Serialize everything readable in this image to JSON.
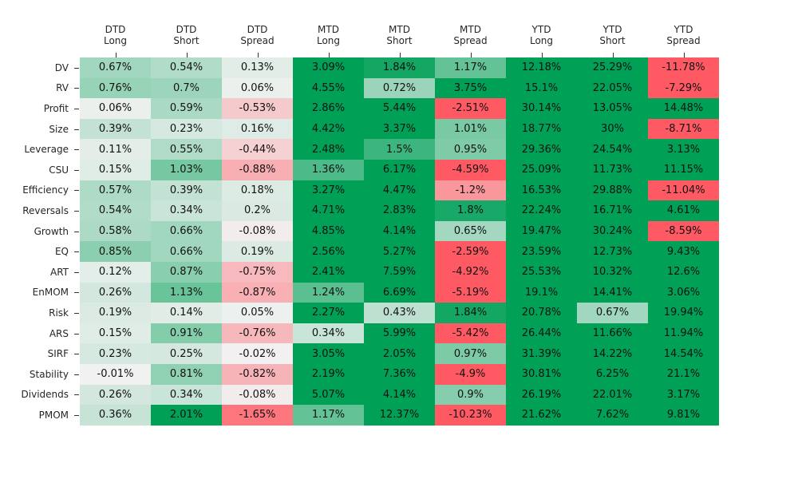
{
  "chart_data": {
    "type": "heatmap",
    "columns": [
      {
        "top": "DTD",
        "bottom": "Long"
      },
      {
        "top": "DTD",
        "bottom": "Short"
      },
      {
        "top": "DTD",
        "bottom": "Spread"
      },
      {
        "top": "MTD",
        "bottom": "Long"
      },
      {
        "top": "MTD",
        "bottom": "Short"
      },
      {
        "top": "MTD",
        "bottom": "Spread"
      },
      {
        "top": "YTD",
        "bottom": "Long"
      },
      {
        "top": "YTD",
        "bottom": "Short"
      },
      {
        "top": "YTD",
        "bottom": "Spread"
      }
    ],
    "rows": [
      "DV",
      "RV",
      "Profit",
      "Size",
      "Leverage",
      "CSU",
      "Efficiency",
      "Reversals",
      "Growth",
      "EQ",
      "ART",
      "EnMOM",
      "Risk",
      "ARS",
      "SIRF",
      "Stability",
      "Dividends",
      "PMOM"
    ],
    "values": [
      [
        0.67,
        0.54,
        0.13,
        3.09,
        1.84,
        1.17,
        12.18,
        25.29,
        -11.78
      ],
      [
        0.76,
        0.7,
        0.06,
        4.55,
        0.72,
        3.75,
        15.1,
        22.05,
        -7.29
      ],
      [
        0.06,
        0.59,
        -0.53,
        2.86,
        5.44,
        -2.51,
        30.14,
        13.05,
        14.48
      ],
      [
        0.39,
        0.23,
        0.16,
        4.42,
        3.37,
        1.01,
        18.77,
        30.0,
        -8.71
      ],
      [
        0.11,
        0.55,
        -0.44,
        2.48,
        1.5,
        0.95,
        29.36,
        24.54,
        3.13
      ],
      [
        0.15,
        1.03,
        -0.88,
        1.36,
        6.17,
        -4.59,
        25.09,
        11.73,
        11.15
      ],
      [
        0.57,
        0.39,
        0.18,
        3.27,
        4.47,
        -1.2,
        16.53,
        29.88,
        -11.04
      ],
      [
        0.54,
        0.34,
        0.2,
        4.71,
        2.83,
        1.8,
        22.24,
        16.71,
        4.61
      ],
      [
        0.58,
        0.66,
        -0.08,
        4.85,
        4.14,
        0.65,
        19.47,
        30.24,
        -8.59
      ],
      [
        0.85,
        0.66,
        0.19,
        2.56,
        5.27,
        -2.59,
        23.59,
        12.73,
        9.43
      ],
      [
        0.12,
        0.87,
        -0.75,
        2.41,
        7.59,
        -4.92,
        25.53,
        10.32,
        12.6
      ],
      [
        0.26,
        1.13,
        -0.87,
        1.24,
        6.69,
        -5.19,
        19.1,
        14.41,
        3.06
      ],
      [
        0.19,
        0.14,
        0.05,
        2.27,
        0.43,
        1.84,
        20.78,
        0.67,
        19.94
      ],
      [
        0.15,
        0.91,
        -0.76,
        0.34,
        5.99,
        -5.42,
        26.44,
        11.66,
        11.94
      ],
      [
        0.23,
        0.25,
        -0.02,
        3.05,
        2.05,
        0.97,
        31.39,
        14.22,
        14.54
      ],
      [
        -0.01,
        0.81,
        -0.82,
        2.19,
        7.36,
        -4.9,
        30.81,
        6.25,
        21.1
      ],
      [
        0.26,
        0.34,
        -0.08,
        5.07,
        4.14,
        0.9,
        26.19,
        22.01,
        3.17
      ],
      [
        0.36,
        2.01,
        -1.65,
        1.17,
        12.37,
        -10.23,
        21.62,
        7.62,
        9.81
      ]
    ],
    "value_suffix": "%",
    "color_scale": {
      "negative": "#ff5a64",
      "neutral": "#f2f2f2",
      "positive": "#00a057",
      "saturation_abs": 2.0
    },
    "grid": false,
    "legend": "none"
  }
}
